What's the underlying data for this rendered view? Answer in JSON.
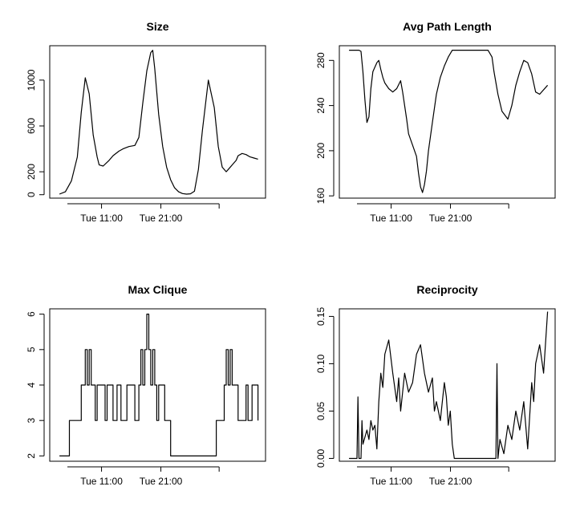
{
  "chart_data": [
    {
      "type": "line",
      "title": "Size",
      "xlabel": "",
      "ylabel": "",
      "x_ticks": [
        "Tue 11:00",
        "Tue 21:00",
        ""
      ],
      "y_ticks": [
        0,
        200,
        600,
        1000
      ],
      "ylim": [
        -30,
        1300
      ],
      "xlim": [
        0,
        1
      ],
      "series": [
        {
          "x": [
            0.0,
            0.03,
            0.06,
            0.09,
            0.11,
            0.13,
            0.15,
            0.17,
            0.19,
            0.2,
            0.22,
            0.25,
            0.27,
            0.3,
            0.32,
            0.35,
            0.38,
            0.4,
            0.42,
            0.44,
            0.46,
            0.47,
            0.48,
            0.5,
            0.52,
            0.54,
            0.56,
            0.58,
            0.6,
            0.62,
            0.64,
            0.66,
            0.68,
            0.7,
            0.72,
            0.75,
            0.78,
            0.8,
            0.82,
            0.84,
            0.85,
            0.87,
            0.89,
            0.9,
            0.92,
            0.94,
            0.96,
            0.98,
            1.0
          ],
          "values": [
            5,
            25,
            120,
            330,
            720,
            1020,
            880,
            520,
            330,
            260,
            250,
            300,
            340,
            380,
            400,
            420,
            430,
            500,
            800,
            1080,
            1240,
            1260,
            1100,
            700,
            420,
            240,
            130,
            60,
            25,
            10,
            5,
            8,
            30,
            220,
            560,
            1000,
            760,
            420,
            240,
            200,
            220,
            260,
            300,
            340,
            360,
            350,
            330,
            320,
            310
          ]
        }
      ]
    },
    {
      "type": "line",
      "title": "Avg Path Length",
      "xlabel": "",
      "ylabel": "",
      "x_ticks": [
        "Tue 11:00",
        "Tue 21:00",
        ""
      ],
      "y_ticks": [
        160,
        200,
        240,
        280
      ],
      "ylim": [
        158,
        293
      ],
      "xlim": [
        0,
        1
      ],
      "series": [
        {
          "x": [
            0.0,
            0.03,
            0.05,
            0.06,
            0.07,
            0.08,
            0.09,
            0.1,
            0.11,
            0.12,
            0.14,
            0.15,
            0.16,
            0.17,
            0.18,
            0.2,
            0.22,
            0.24,
            0.26,
            0.27,
            0.28,
            0.29,
            0.3,
            0.32,
            0.34,
            0.35,
            0.36,
            0.37,
            0.38,
            0.39,
            0.4,
            0.42,
            0.44,
            0.46,
            0.48,
            0.5,
            0.52,
            0.55,
            0.6,
            0.65,
            0.7,
            0.72,
            0.73,
            0.75,
            0.77,
            0.8,
            0.82,
            0.84,
            0.86,
            0.88,
            0.9,
            0.92,
            0.94,
            0.96,
            1.0
          ],
          "values": [
            289,
            289,
            289,
            288,
            270,
            245,
            225,
            230,
            255,
            270,
            278,
            280,
            272,
            265,
            260,
            255,
            252,
            255,
            262,
            252,
            240,
            228,
            215,
            205,
            195,
            180,
            168,
            163,
            170,
            182,
            200,
            225,
            250,
            265,
            275,
            283,
            289,
            289,
            289,
            289,
            289,
            283,
            270,
            250,
            235,
            228,
            240,
            258,
            270,
            280,
            278,
            268,
            252,
            250,
            258
          ]
        }
      ]
    },
    {
      "type": "line",
      "title": "Max Clique",
      "xlabel": "",
      "ylabel": "",
      "x_ticks": [
        "Tue 11:00",
        "Tue 21:00",
        ""
      ],
      "y_ticks": [
        2,
        3,
        4,
        5,
        6
      ],
      "ylim": [
        1.85,
        6.15
      ],
      "xlim": [
        0,
        1
      ],
      "series": [
        {
          "x": [
            0.0,
            0.04,
            0.05,
            0.09,
            0.11,
            0.12,
            0.13,
            0.14,
            0.15,
            0.16,
            0.17,
            0.18,
            0.19,
            0.2,
            0.22,
            0.23,
            0.24,
            0.27,
            0.29,
            0.3,
            0.31,
            0.34,
            0.37,
            0.38,
            0.4,
            0.41,
            0.42,
            0.43,
            0.44,
            0.45,
            0.46,
            0.47,
            0.48,
            0.49,
            0.5,
            0.51,
            0.53,
            0.56,
            0.76,
            0.79,
            0.82,
            0.83,
            0.84,
            0.85,
            0.86,
            0.87,
            0.9,
            0.92,
            0.94,
            0.95,
            0.97,
            1.0
          ],
          "values": [
            2,
            2,
            3,
            3,
            4,
            4,
            5,
            4,
            5,
            4,
            4,
            3,
            4,
            4,
            4,
            3,
            4,
            3,
            4,
            4,
            3,
            4,
            4,
            3,
            4,
            5,
            4,
            5,
            6,
            5,
            4,
            5,
            4,
            3,
            4,
            4,
            3,
            2,
            2,
            3,
            3,
            4,
            5,
            4,
            5,
            4,
            3,
            3,
            4,
            3,
            4,
            3
          ]
        }
      ]
    },
    {
      "type": "line",
      "title": "Reciprocity",
      "xlabel": "",
      "ylabel": "",
      "x_ticks": [
        "Tue 11:00",
        "Tue 21:00",
        ""
      ],
      "y_ticks": [
        0.0,
        0.05,
        0.1,
        0.15
      ],
      "ylim": [
        -0.003,
        0.158
      ],
      "xlim": [
        0,
        1
      ],
      "series": [
        {
          "x": [
            0.0,
            0.04,
            0.045,
            0.05,
            0.06,
            0.065,
            0.07,
            0.09,
            0.1,
            0.11,
            0.12,
            0.13,
            0.14,
            0.15,
            0.16,
            0.17,
            0.18,
            0.2,
            0.22,
            0.24,
            0.25,
            0.26,
            0.28,
            0.3,
            0.32,
            0.34,
            0.36,
            0.38,
            0.4,
            0.42,
            0.43,
            0.44,
            0.46,
            0.48,
            0.49,
            0.5,
            0.51,
            0.52,
            0.53,
            0.54,
            0.56,
            0.58,
            0.62,
            0.7,
            0.74,
            0.745,
            0.75,
            0.76,
            0.78,
            0.8,
            0.82,
            0.84,
            0.86,
            0.88,
            0.9,
            0.92,
            0.93,
            0.94,
            0.96,
            0.98,
            1.0
          ],
          "values": [
            0,
            0,
            0.065,
            0,
            0,
            0.04,
            0.015,
            0.03,
            0.02,
            0.04,
            0.03,
            0.035,
            0.01,
            0.06,
            0.09,
            0.075,
            0.11,
            0.125,
            0.09,
            0.06,
            0.085,
            0.05,
            0.09,
            0.07,
            0.08,
            0.11,
            0.12,
            0.09,
            0.07,
            0.085,
            0.05,
            0.06,
            0.04,
            0.08,
            0.065,
            0.035,
            0.05,
            0.015,
            0,
            0,
            0,
            0,
            0,
            0,
            0,
            0.1,
            0,
            0.02,
            0.005,
            0.035,
            0.02,
            0.05,
            0.03,
            0.06,
            0.01,
            0.08,
            0.06,
            0.1,
            0.12,
            0.09,
            0.155
          ]
        }
      ]
    }
  ]
}
